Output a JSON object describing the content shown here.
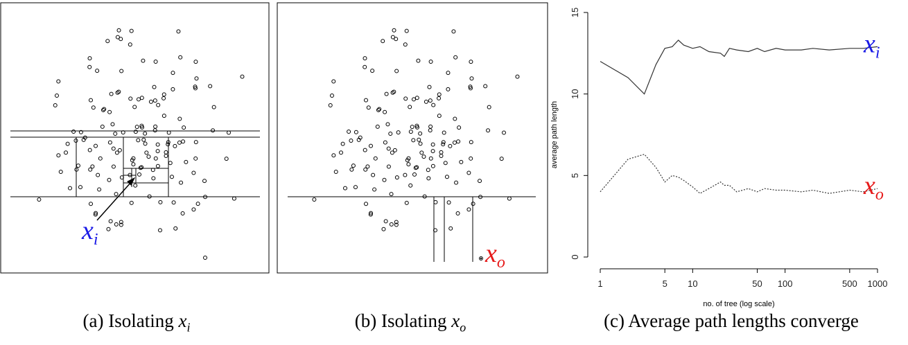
{
  "panels": [
    {
      "label": {
        "var": "x",
        "sub": "i"
      }
    },
    {
      "label": {
        "var": "x",
        "sub": "o"
      }
    }
  ],
  "chart_data": {
    "type": "line",
    "x": [
      1,
      2,
      3,
      4,
      5,
      6,
      7,
      8,
      10,
      12,
      15,
      20,
      22,
      25,
      30,
      40,
      50,
      60,
      80,
      100,
      150,
      200,
      300,
      500,
      700,
      1000
    ],
    "series": [
      {
        "name": "x",
        "sub": "i",
        "color": "#333333",
        "label_color": "#1a1ae6",
        "dash": "none",
        "values": [
          12,
          11,
          10,
          11.8,
          12.8,
          12.9,
          13.3,
          13.0,
          12.8,
          12.9,
          12.6,
          12.5,
          12.3,
          12.8,
          12.7,
          12.6,
          12.8,
          12.6,
          12.8,
          12.7,
          12.7,
          12.8,
          12.7,
          12.8,
          12.8,
          12.9
        ]
      },
      {
        "name": "x",
        "sub": "o",
        "color": "#333333",
        "label_color": "#e61a1a",
        "dash": "2 2",
        "values": [
          4.0,
          6.0,
          6.3,
          5.5,
          4.6,
          5.0,
          4.9,
          4.7,
          4.3,
          3.9,
          4.2,
          4.6,
          4.4,
          4.4,
          4.0,
          4.2,
          4.0,
          4.2,
          4.1,
          4.1,
          4.0,
          4.1,
          3.9,
          4.1,
          4.0,
          4.2
        ]
      }
    ],
    "xlog": true,
    "xlim": [
      1,
      1000
    ],
    "xticks": [
      1,
      5,
      10,
      50,
      100,
      500,
      1000
    ],
    "ylim": [
      0,
      15
    ],
    "yticks": [
      0,
      5,
      10,
      15
    ],
    "xlabel": "no. of tree (log scale)",
    "ylabel": "average path length"
  },
  "captions": [
    {
      "text": "(a) Isolating",
      "var": "x",
      "sub": "i"
    },
    {
      "text": "(b) Isolating",
      "var": "x",
      "sub": "o"
    },
    {
      "text": "(c) Average path lengths converge"
    }
  ]
}
